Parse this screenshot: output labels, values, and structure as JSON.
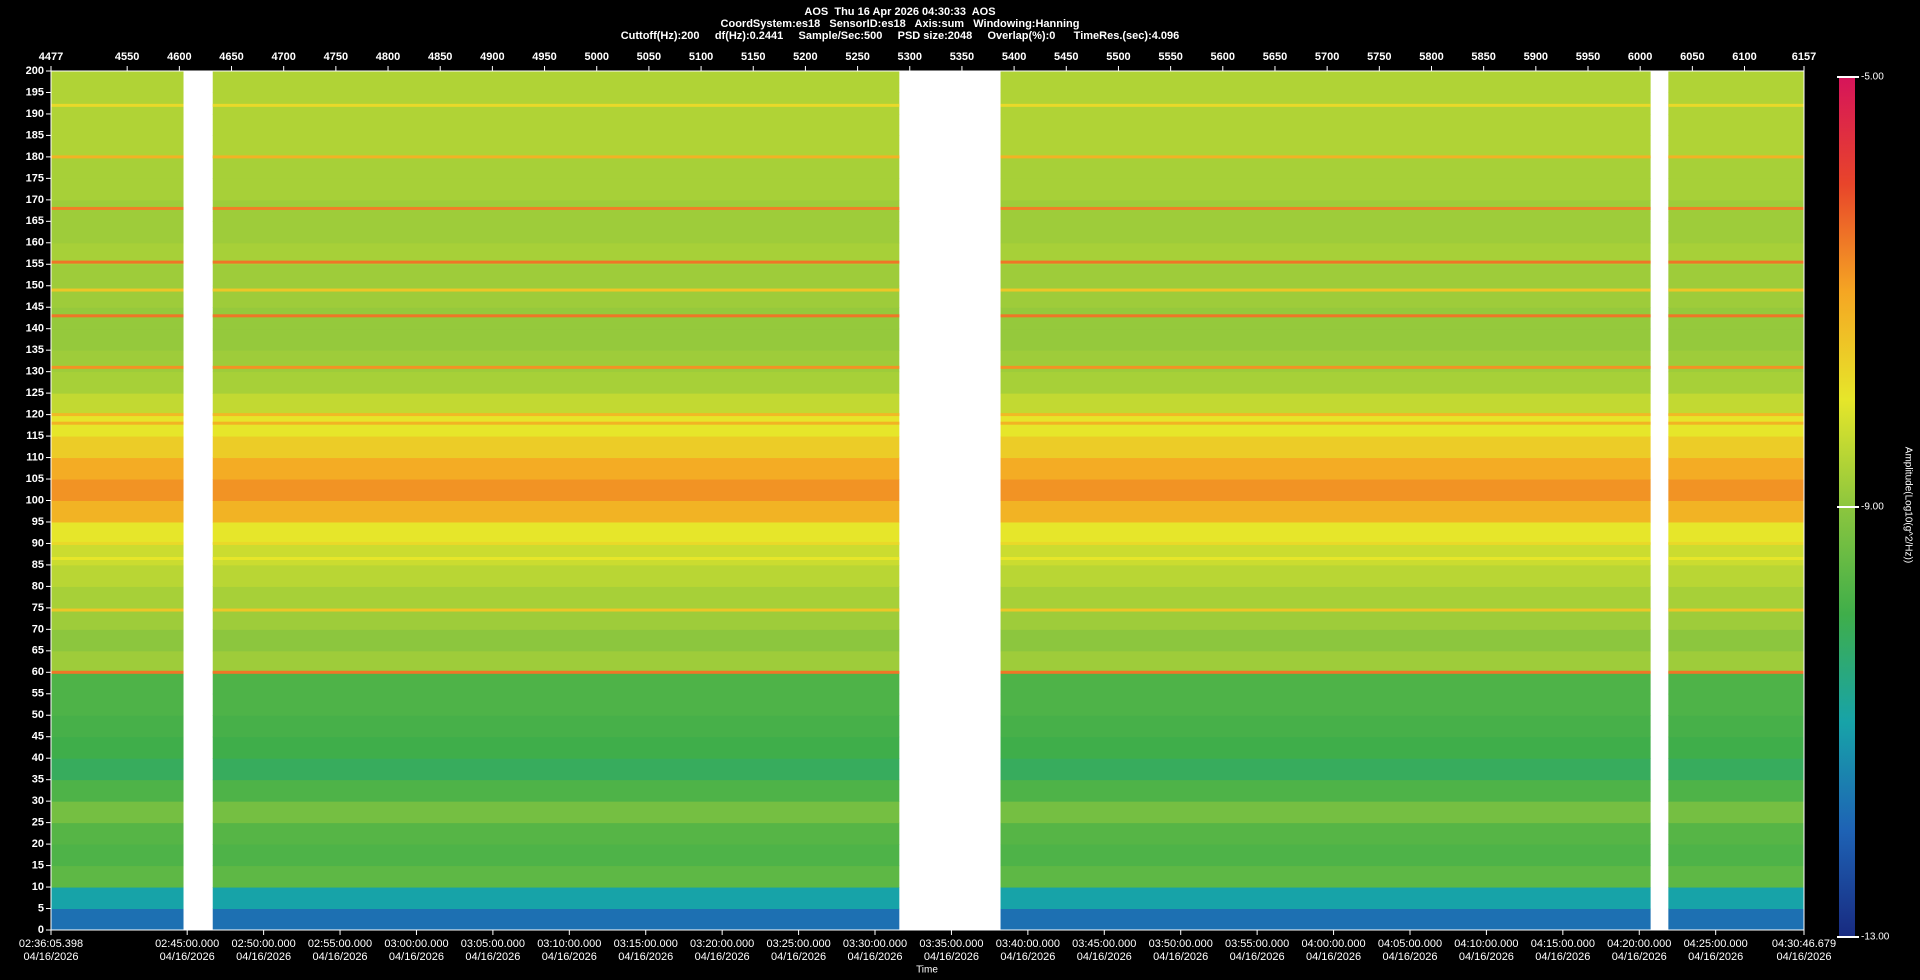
{
  "chart_data": {
    "type": "heatmap",
    "title_lines": [
      "AOS  Thu 16 Apr 2026 04:30:33  AOS",
      "CoordSystem:es18   SensorID:es18   Axis:sum   Windowing:Hanning",
      "Cuttoff(Hz):200     df(Hz):0.2441     Sample/Sec:500     PSD size:2048     Overlap(%):0      TimeRes.(sec):4.096"
    ],
    "xlim": [
      4477,
      6157
    ],
    "xticks": [
      4477,
      4550,
      4600,
      4650,
      4700,
      4750,
      4800,
      4850,
      4900,
      4950,
      5000,
      5050,
      5100,
      5150,
      5200,
      5250,
      5300,
      5350,
      5400,
      5450,
      5500,
      5550,
      5600,
      5650,
      5700,
      5750,
      5800,
      5850,
      5900,
      5950,
      6000,
      6050,
      6100,
      6157
    ],
    "segments": [
      [
        4477,
        4604
      ],
      [
        4632,
        5290
      ],
      [
        5387,
        6010
      ],
      [
        6027,
        6157
      ]
    ],
    "time_axis": {
      "label": "Time",
      "date": "04/16/2026",
      "xlim": [
        9365.398,
        16246.679
      ],
      "ticks": [
        {
          "value": 9365.398,
          "label": "02:36:05.398"
        },
        {
          "value": 9900,
          "label": "02:45:00.000"
        },
        {
          "value": 10200,
          "label": "02:50:00.000"
        },
        {
          "value": 10500,
          "label": "02:55:00.000"
        },
        {
          "value": 10800,
          "label": "03:00:00.000"
        },
        {
          "value": 11100,
          "label": "03:05:00.000"
        },
        {
          "value": 11400,
          "label": "03:10:00.000"
        },
        {
          "value": 11700,
          "label": "03:15:00.000"
        },
        {
          "value": 12000,
          "label": "03:20:00.000"
        },
        {
          "value": 12300,
          "label": "03:25:00.000"
        },
        {
          "value": 12600,
          "label": "03:30:00.000"
        },
        {
          "value": 12900,
          "label": "03:35:00.000"
        },
        {
          "value": 13200,
          "label": "03:40:00.000"
        },
        {
          "value": 13500,
          "label": "03:45:00.000"
        },
        {
          "value": 13800,
          "label": "03:50:00.000"
        },
        {
          "value": 14100,
          "label": "03:55:00.000"
        },
        {
          "value": 14400,
          "label": "04:00:00.000"
        },
        {
          "value": 14700,
          "label": "04:05:00.000"
        },
        {
          "value": 15000,
          "label": "04:10:00.000"
        },
        {
          "value": 15300,
          "label": "04:15:00.000"
        },
        {
          "value": 15600,
          "label": "04:20:00.000"
        },
        {
          "value": 15900,
          "label": "04:25:00.000"
        },
        {
          "value": 16246.679,
          "label": "04:30:46.679"
        }
      ]
    },
    "ylim": [
      0,
      200
    ],
    "yticks": [
      0,
      5,
      10,
      15,
      20,
      25,
      30,
      35,
      40,
      45,
      50,
      55,
      60,
      65,
      70,
      75,
      80,
      85,
      90,
      95,
      100,
      105,
      110,
      115,
      120,
      125,
      130,
      135,
      140,
      145,
      150,
      155,
      160,
      165,
      170,
      175,
      180,
      185,
      190,
      195,
      200
    ],
    "freq_bins": [
      0,
      5,
      10,
      15,
      20,
      25,
      30,
      35,
      40,
      45,
      50,
      55,
      60,
      65,
      70,
      75,
      80,
      85,
      90,
      95,
      100,
      105,
      110,
      115,
      120,
      125,
      130,
      135,
      140,
      145,
      150,
      155,
      160,
      165,
      170,
      175,
      180,
      185,
      190,
      195,
      200
    ],
    "levels": [
      -11.8,
      -11,
      -9.6,
      -9.8,
      -9.7,
      -9.3,
      -9.8,
      -10.2,
      -10,
      -9.9,
      -9.8,
      -9.8,
      -8.8,
      -9,
      -8.8,
      -8.7,
      -8.5,
      -8.3,
      -8,
      -7.2,
      -6.8,
      -7.1,
      -7.6,
      -8,
      -8.4,
      -8.7,
      -8.8,
      -8.9,
      -8.9,
      -8.8,
      -8.8,
      -8.7,
      -8.8,
      -8.8,
      -8.7,
      -8.7,
      -8.6,
      -8.6,
      -8.6,
      -8.6
    ],
    "lines": {
      "freqs": [
        60,
        74.5,
        86.5,
        90,
        118,
        120,
        131,
        143,
        149,
        155.5,
        168,
        180,
        192
      ],
      "levels": [
        -6.5,
        -7.5,
        -8,
        -7.8,
        -7.2,
        -7.3,
        -6.8,
        -6.5,
        -7.5,
        -6.5,
        -6.6,
        -7.2,
        -7.8
      ]
    },
    "colorbar": {
      "label": "Amplitude(Log10(g^2/Hz))",
      "clim": [
        -13,
        -5
      ],
      "ticks": [
        {
          "value": -13,
          "label": "-13.00"
        },
        {
          "value": -9,
          "label": "-9.00"
        },
        {
          "value": -5,
          "label": "-5.00"
        }
      ],
      "colors": [
        "#182a80",
        "#1e63b5",
        "#17a3a8",
        "#3fae4a",
        "#8cc63e",
        "#e6e62a",
        "#f5a623",
        "#e8452a",
        "#d6145a"
      ]
    }
  }
}
